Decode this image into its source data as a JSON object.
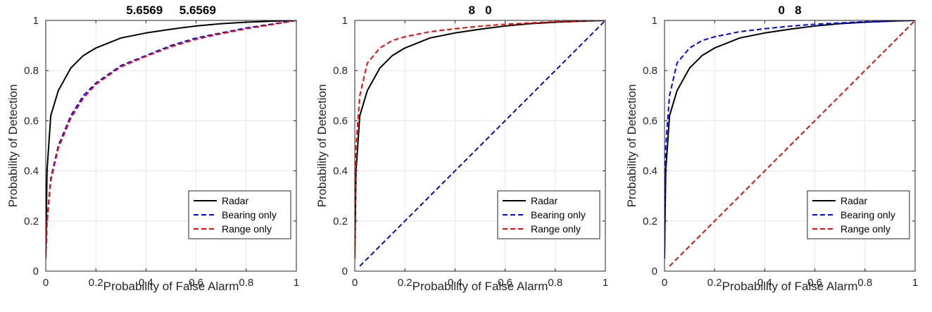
{
  "chart_data": [
    {
      "type": "line",
      "title": "5.6569     5.6569",
      "xlabel": "Probability of False Alarm",
      "ylabel": "Probability of Detection",
      "xlim": [
        0,
        1
      ],
      "ylim": [
        0,
        1
      ],
      "xticks": [
        "0",
        "0.2",
        "0.4",
        "0.6",
        "0.8",
        "1"
      ],
      "yticks": [
        "0",
        "0.2",
        "0.4",
        "0.6",
        "0.8",
        "1"
      ],
      "grid": true,
      "legend_position": "bottom-right",
      "series": [
        {
          "name": "Radar",
          "color": "#000000",
          "dash": "solid",
          "x": [
            0,
            0.005,
            0.02,
            0.05,
            0.1,
            0.15,
            0.2,
            0.3,
            0.4,
            0.5,
            0.6,
            0.7,
            0.8,
            0.9,
            1.0
          ],
          "y": [
            0.05,
            0.4,
            0.62,
            0.72,
            0.81,
            0.86,
            0.89,
            0.93,
            0.95,
            0.965,
            0.978,
            0.987,
            0.993,
            0.997,
            1.0
          ]
        },
        {
          "name": "Bearing only",
          "color": "#0000ff",
          "dash": "dashed",
          "x": [
            0,
            0.005,
            0.02,
            0.05,
            0.1,
            0.15,
            0.2,
            0.3,
            0.4,
            0.5,
            0.6,
            0.7,
            0.8,
            0.9,
            1.0
          ],
          "y": [
            0.05,
            0.2,
            0.37,
            0.5,
            0.62,
            0.7,
            0.75,
            0.82,
            0.86,
            0.9,
            0.93,
            0.95,
            0.97,
            0.985,
            1.0
          ]
        },
        {
          "name": "Range only",
          "color": "#ff0000",
          "dash": "dashed",
          "x": [
            0,
            0.005,
            0.02,
            0.05,
            0.1,
            0.15,
            0.2,
            0.3,
            0.4,
            0.5,
            0.6,
            0.7,
            0.8,
            0.9,
            1.0
          ],
          "y": [
            0.05,
            0.19,
            0.36,
            0.49,
            0.61,
            0.69,
            0.745,
            0.815,
            0.857,
            0.895,
            0.925,
            0.947,
            0.967,
            0.983,
            1.0
          ]
        }
      ]
    },
    {
      "type": "line",
      "title": "8   0",
      "xlabel": "Probability of False Alarm",
      "ylabel": "Probability of Detection",
      "xlim": [
        0,
        1
      ],
      "ylim": [
        0,
        1
      ],
      "xticks": [
        "0",
        "0.2",
        "0.4",
        "0.6",
        "0.8",
        "1"
      ],
      "yticks": [
        "0",
        "0.2",
        "0.4",
        "0.6",
        "0.8",
        "1"
      ],
      "grid": true,
      "legend_position": "bottom-right",
      "series": [
        {
          "name": "Radar",
          "color": "#000000",
          "dash": "solid",
          "x": [
            0,
            0.005,
            0.02,
            0.05,
            0.1,
            0.15,
            0.2,
            0.3,
            0.4,
            0.5,
            0.6,
            0.7,
            0.8,
            0.9,
            1.0
          ],
          "y": [
            0.05,
            0.4,
            0.62,
            0.72,
            0.81,
            0.86,
            0.89,
            0.93,
            0.95,
            0.965,
            0.978,
            0.987,
            0.993,
            0.997,
            1.0
          ]
        },
        {
          "name": "Bearing only",
          "color": "#0000ff",
          "dash": "dashed",
          "x": [
            0.02,
            1.0
          ],
          "y": [
            0.02,
            1.0
          ]
        },
        {
          "name": "Range only",
          "color": "#ff0000",
          "dash": "dashed",
          "x": [
            0,
            0.005,
            0.02,
            0.05,
            0.1,
            0.15,
            0.2,
            0.3,
            0.4,
            0.5,
            0.6,
            0.7,
            0.8,
            0.9,
            1.0
          ],
          "y": [
            0.05,
            0.5,
            0.7,
            0.83,
            0.89,
            0.92,
            0.935,
            0.955,
            0.967,
            0.977,
            0.985,
            0.99,
            0.995,
            0.998,
            1.0
          ]
        }
      ]
    },
    {
      "type": "line",
      "title": "0   8",
      "xlabel": "Probability of False Alarm",
      "ylabel": "Probability of Detection",
      "xlim": [
        0,
        1
      ],
      "ylim": [
        0,
        1
      ],
      "xticks": [
        "0",
        "0.2",
        "0.4",
        "0.6",
        "0.8",
        "1"
      ],
      "yticks": [
        "0",
        "0.2",
        "0.4",
        "0.6",
        "0.8",
        "1"
      ],
      "grid": true,
      "legend_position": "bottom-right",
      "series": [
        {
          "name": "Radar",
          "color": "#000000",
          "dash": "solid",
          "x": [
            0,
            0.005,
            0.02,
            0.05,
            0.1,
            0.15,
            0.2,
            0.3,
            0.4,
            0.5,
            0.6,
            0.7,
            0.8,
            0.9,
            1.0
          ],
          "y": [
            0.05,
            0.4,
            0.62,
            0.72,
            0.81,
            0.86,
            0.89,
            0.93,
            0.95,
            0.965,
            0.978,
            0.987,
            0.993,
            0.997,
            1.0
          ]
        },
        {
          "name": "Bearing only",
          "color": "#0000ff",
          "dash": "dashed",
          "x": [
            0,
            0.005,
            0.02,
            0.05,
            0.1,
            0.15,
            0.2,
            0.3,
            0.4,
            0.5,
            0.6,
            0.7,
            0.8,
            0.9,
            1.0
          ],
          "y": [
            0.05,
            0.5,
            0.7,
            0.83,
            0.89,
            0.92,
            0.935,
            0.955,
            0.967,
            0.977,
            0.985,
            0.99,
            0.995,
            0.998,
            1.0
          ]
        },
        {
          "name": "Range only",
          "color": "#ff0000",
          "dash": "dashed",
          "x": [
            0.02,
            1.0
          ],
          "y": [
            0.02,
            1.0
          ]
        }
      ]
    }
  ]
}
